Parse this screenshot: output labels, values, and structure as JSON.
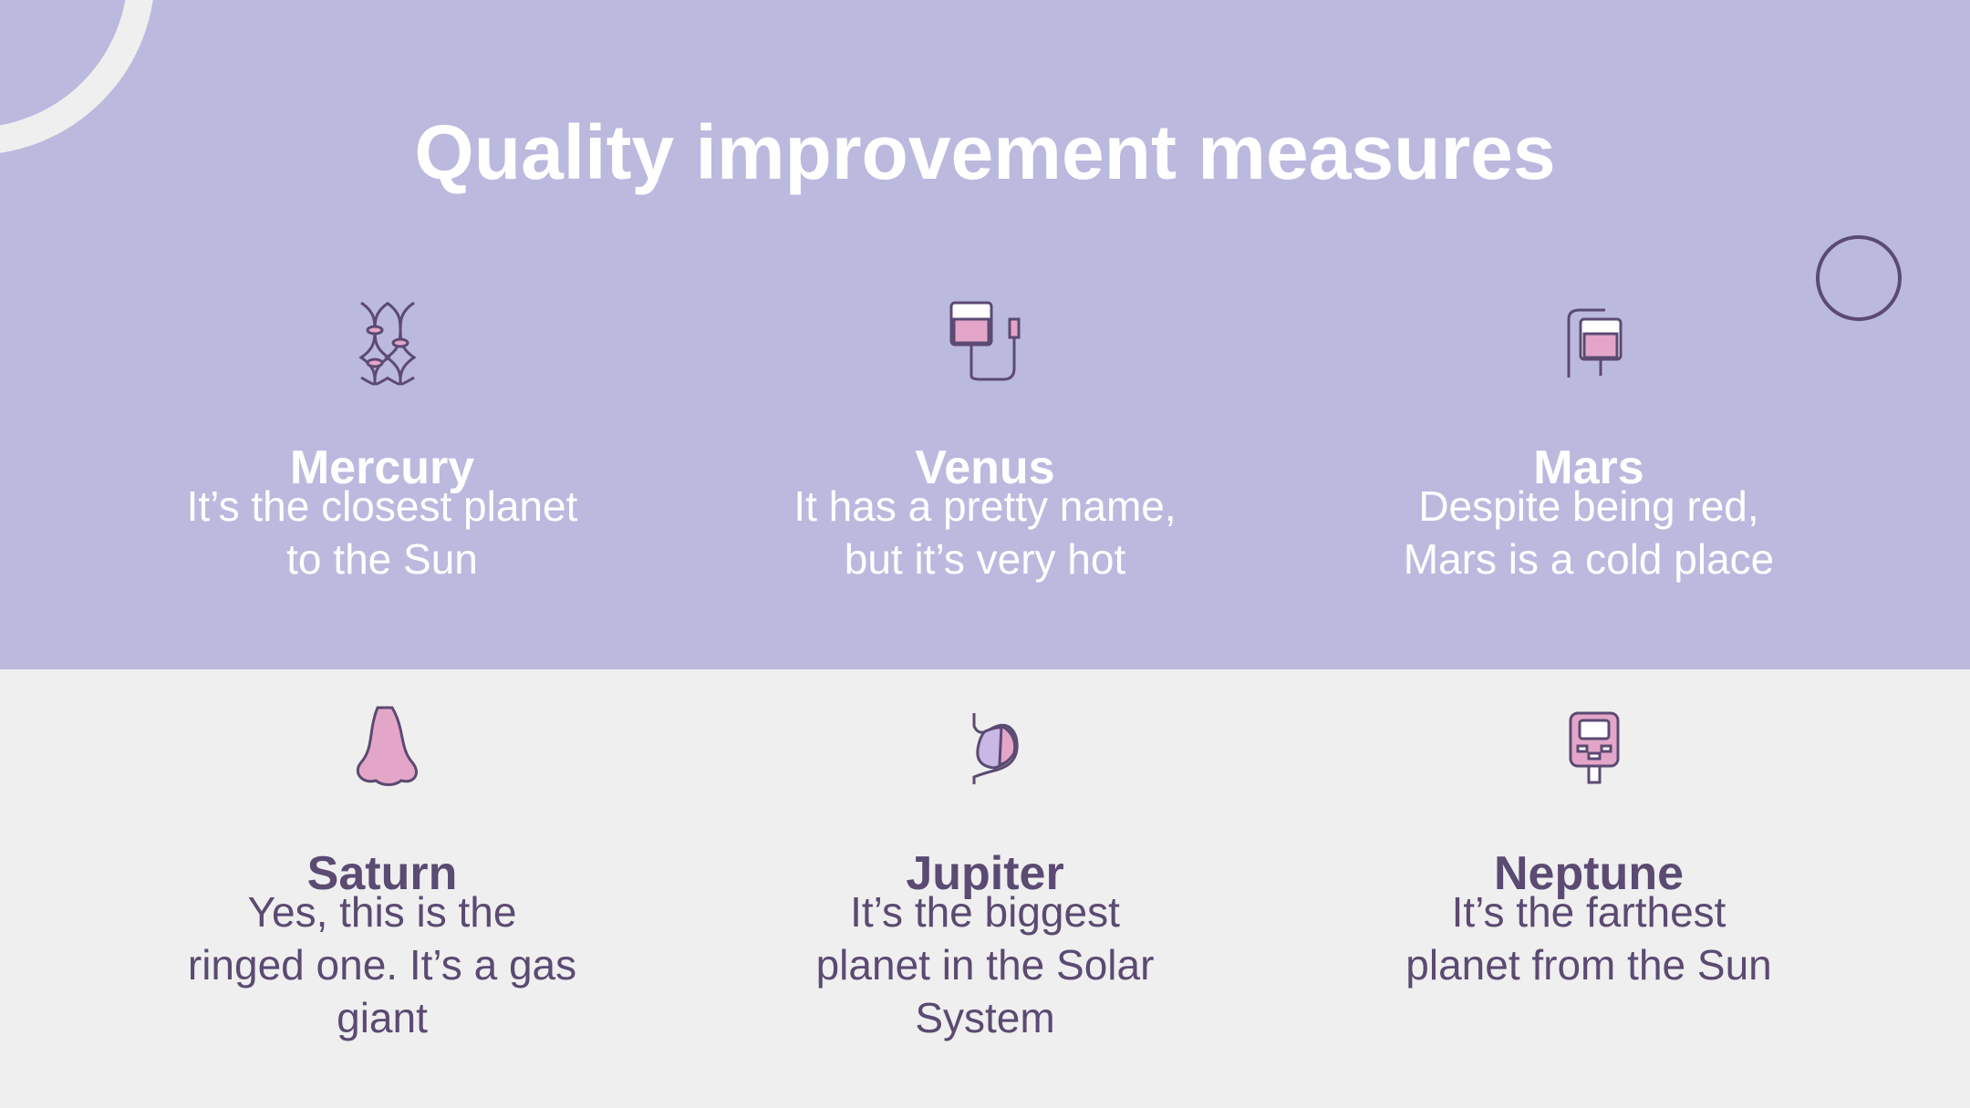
{
  "title": "Quality improvement measures",
  "items": [
    {
      "title": "Mercury",
      "description": [
        "It’s the closest planet",
        "to the Sun"
      ]
    },
    {
      "title": "Venus",
      "description": [
        "It has a pretty name,",
        "but it’s very hot"
      ]
    },
    {
      "title": "Mars",
      "description": [
        "Despite being red,",
        "Mars is a cold place"
      ]
    },
    {
      "title": "Saturn",
      "description": [
        "Yes, this is the",
        "ringed one. It’s a gas",
        "giant"
      ]
    },
    {
      "title": "Jupiter",
      "description": [
        "It’s the biggest",
        "planet in the Solar",
        "System"
      ]
    },
    {
      "title": "Neptune",
      "description": [
        "It’s the farthest",
        "planet from the Sun"
      ]
    }
  ]
}
